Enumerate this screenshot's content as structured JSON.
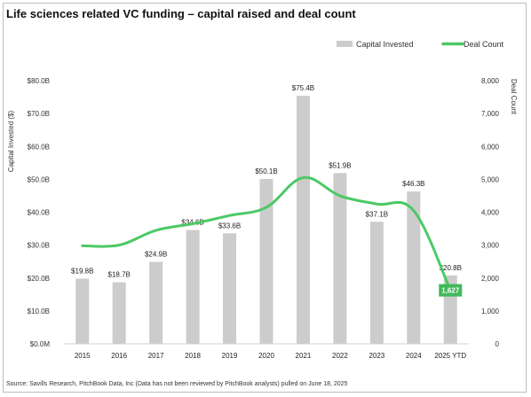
{
  "title": "Life sciences related VC funding – capital raised and deal count",
  "source": "Source: Savills Research, PitchBook Data, Inc (Data has not been reviewed by PitchBook analysts) pulled on June 18, 2025",
  "colors": {
    "bar": "#cccccc",
    "line": "#4cc966",
    "callout": "#3fb95a",
    "callout_text": "#ffffff"
  },
  "chart_data": {
    "type": "bar",
    "categories": [
      "2015",
      "2016",
      "2017",
      "2018",
      "2019",
      "2020",
      "2021",
      "2022",
      "2023",
      "2024",
      "2025 YTD"
    ],
    "series": [
      {
        "name": "Capital Invested",
        "type": "bar",
        "axis": "left",
        "values": [
          19.8,
          18.7,
          24.9,
          34.6,
          33.6,
          50.1,
          75.4,
          51.9,
          37.1,
          46.3,
          20.8
        ],
        "labels": [
          "$19.8B",
          "$18.7B",
          "$24.9B",
          "$34.6B",
          "$33.6B",
          "$50.1B",
          "$75.4B",
          "$51.9B",
          "$37.1B",
          "$46.3B",
          "$20.8B"
        ]
      },
      {
        "name": "Deal Count",
        "type": "line",
        "axis": "right",
        "values": [
          2980,
          3000,
          3450,
          3650,
          3900,
          4150,
          5050,
          4500,
          4250,
          4050,
          1627
        ],
        "callout_index": 10,
        "callout_label": "1,627"
      }
    ],
    "ylabel": "Capital Invested ($)",
    "y2label": "Deal Count",
    "ylim": [
      0,
      80
    ],
    "y2lim": [
      0,
      8000
    ],
    "yticks": [
      0,
      10,
      20,
      30,
      40,
      50,
      60,
      70,
      80
    ],
    "ytick_labels": [
      "$0.0M",
      "$10.0B",
      "$20.0B",
      "$30.0B",
      "$40.0B",
      "$50.0B",
      "$60.0B",
      "$70.0B",
      "$80.0B"
    ],
    "y2ticks": [
      0,
      1000,
      2000,
      3000,
      4000,
      5000,
      6000,
      7000,
      8000
    ],
    "y2tick_labels": [
      "0",
      "1,000",
      "2,000",
      "3,000",
      "4,000",
      "5,000",
      "6,000",
      "7,000",
      "8,000"
    ],
    "legend_position": "top-right",
    "grid": false
  }
}
